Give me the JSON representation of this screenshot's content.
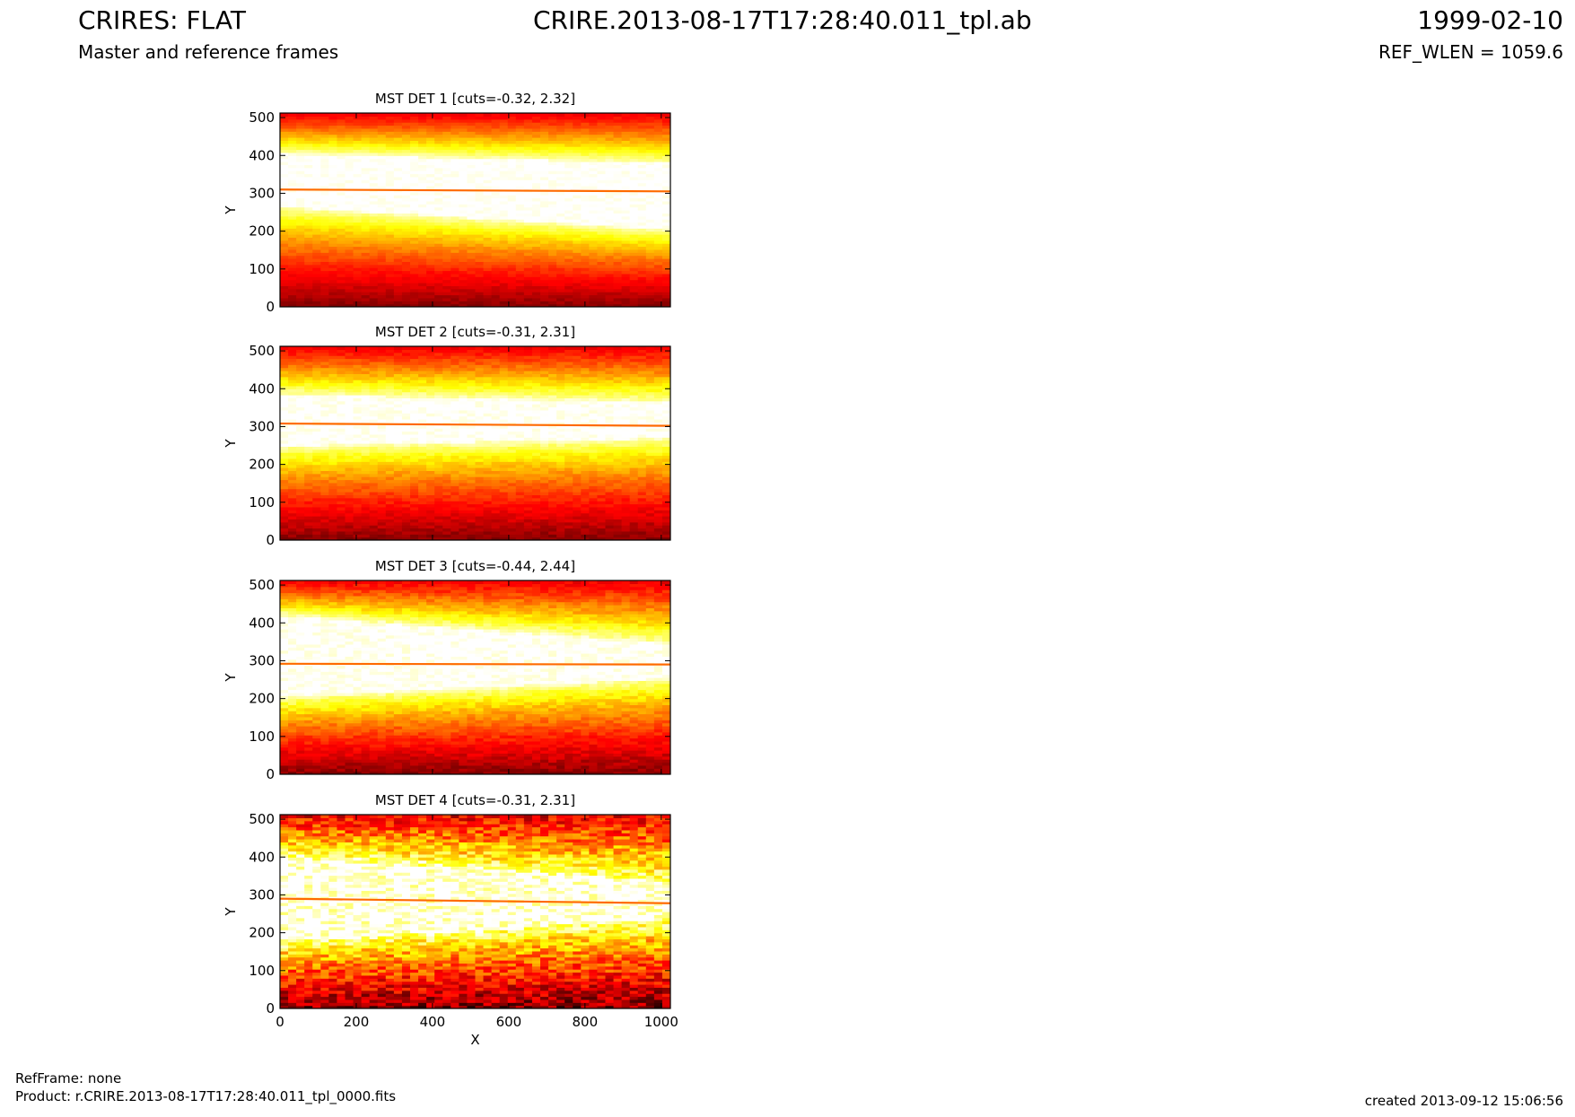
{
  "header": {
    "title": "CRIRES: FLAT",
    "subtitle": "Master and reference frames",
    "filename": "CRIRE.2013-08-17T17:28:40.011_tpl.ab",
    "date": "1999-02-10",
    "ref_wlen": "REF_WLEN = 1059.6"
  },
  "footer": {
    "refframe": "RefFrame: none",
    "product": "Product: r.CRIRE.2013-08-17T17:28:40.011_tpl_0000.fits",
    "created": "created 2013-09-12 15:06:56"
  },
  "colors": {
    "colormap": "hot",
    "dark_red": "#8b0000",
    "red": "#e0180a",
    "orange": "#ff6a00",
    "yellow": "#ffe83a",
    "white": "#ffffff"
  },
  "chart_data": [
    {
      "type": "heatmap",
      "title": "MST DET 1 [cuts=-0.32, 2.32]",
      "cuts": [
        -0.32,
        2.32
      ],
      "xlabel": "",
      "ylabel": "Y",
      "xlim": [
        0,
        1024
      ],
      "ylim": [
        0,
        512
      ],
      "xticks": [],
      "yticks": [
        0,
        100,
        200,
        300,
        400,
        500
      ],
      "band": {
        "upper_edge": [
          405,
          380
        ],
        "lower_edge": [
          265,
          205
        ]
      },
      "line": {
        "y": [
          310,
          305
        ]
      },
      "noise": 0.06
    },
    {
      "type": "heatmap",
      "title": "MST DET 2 [cuts=-0.31, 2.31]",
      "cuts": [
        -0.31,
        2.31
      ],
      "xlabel": "",
      "ylabel": "Y",
      "xlim": [
        0,
        1024
      ],
      "ylim": [
        0,
        512
      ],
      "xticks": [],
      "yticks": [
        0,
        100,
        200,
        300,
        400,
        500
      ],
      "band": {
        "upper_edge": [
          385,
          365
        ],
        "lower_edge": [
          250,
          270
        ]
      },
      "line": {
        "y": [
          308,
          302
        ]
      },
      "noise": 0.08
    },
    {
      "type": "heatmap",
      "title": "MST DET 3 [cuts=-0.44, 2.44]",
      "cuts": [
        -0.44,
        2.44
      ],
      "xlabel": "",
      "ylabel": "Y",
      "xlim": [
        0,
        1024
      ],
      "ylim": [
        0,
        512
      ],
      "xticks": [],
      "yticks": [
        0,
        100,
        200,
        300,
        400,
        500
      ],
      "band": {
        "upper_edge": [
          420,
          345
        ],
        "lower_edge": [
          205,
          255
        ]
      },
      "line": {
        "y": [
          292,
          290
        ]
      },
      "noise": 0.1
    },
    {
      "type": "heatmap",
      "title": "MST DET 4 [cuts=-0.31, 2.31]",
      "cuts": [
        -0.31,
        2.31
      ],
      "xlabel": "X",
      "ylabel": "Y",
      "xlim": [
        0,
        1024
      ],
      "ylim": [
        0,
        512
      ],
      "xticks": [
        0,
        200,
        400,
        600,
        800,
        1000
      ],
      "yticks": [
        0,
        100,
        200,
        300,
        400,
        500
      ],
      "band": {
        "upper_edge": [
          400,
          330
        ],
        "lower_edge": [
          180,
          240
        ]
      },
      "line": {
        "y": [
          290,
          278
        ]
      },
      "noise": 0.3
    }
  ]
}
